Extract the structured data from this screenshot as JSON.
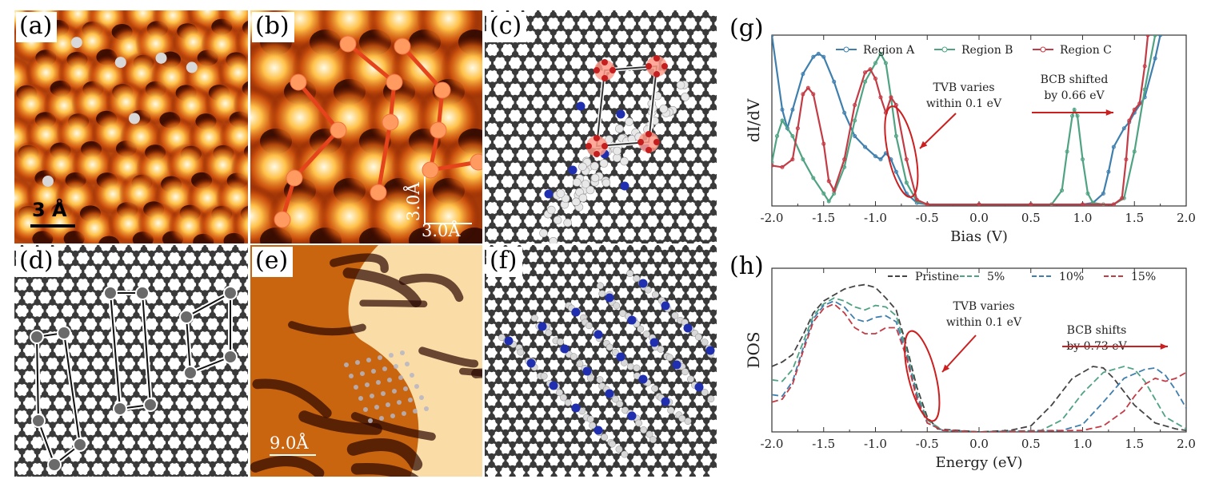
{
  "panels": {
    "a": {
      "label": "(a)",
      "scale_bar": "3 Å"
    },
    "b": {
      "label": "(b)",
      "scale_y": "3.0Å",
      "scale_x": "3.0Å"
    },
    "c": {
      "label": "(c)"
    },
    "d": {
      "label": "(d)"
    },
    "e": {
      "label": "(e)",
      "scale_bar": "9.0Å"
    },
    "f": {
      "label": "(f)"
    },
    "g": {
      "label": "(g)"
    },
    "h": {
      "label": "(h)"
    }
  },
  "colors": {
    "region_a": "#3f7fae",
    "region_b": "#4fa383",
    "region_c": "#c33b45",
    "pristine": "#444444",
    "p5": "#4fa383",
    "p10": "#3f7fae",
    "p15": "#c33b45",
    "annotation": "#cc1f1f",
    "atom": "#3a3a3a",
    "nitrogen": "#1f2fb0",
    "oxygen": "#c41e1e",
    "hydrogen": "#c9c9c9"
  },
  "chart_data": [
    {
      "type": "line",
      "panel": "g",
      "xlabel": "Bias (V)",
      "ylabel": "dI/dV",
      "xlim": [
        -2.0,
        2.0
      ],
      "ylim": [
        0,
        1.1
      ],
      "xticks": [
        "-2.0",
        "-1.5",
        "-1.0",
        "-0.5",
        "0.0",
        "0.5",
        "1.0",
        "1.5",
        "2.0"
      ],
      "legend_position": "top",
      "annotations": [
        {
          "line1": "TVB varies",
          "line2": "within 0.1 eV"
        },
        {
          "line1": "BCB shifted",
          "line2": "by 0.66 eV"
        }
      ],
      "series": [
        {
          "name": "Region A",
          "x": [
            -2.0,
            -1.9,
            -1.85,
            -1.8,
            -1.7,
            -1.6,
            -1.55,
            -1.5,
            -1.4,
            -1.3,
            -1.2,
            -1.1,
            -1.0,
            -0.95,
            -0.9,
            -0.85,
            -0.8,
            -0.7,
            -0.6,
            -0.5,
            0.0,
            0.5,
            1.0,
            1.1,
            1.2,
            1.25,
            1.3,
            1.4,
            1.45,
            1.5,
            1.6,
            1.7,
            1.75
          ],
          "y": [
            1.1,
            0.62,
            0.5,
            0.62,
            0.85,
            0.96,
            0.98,
            0.96,
            0.8,
            0.6,
            0.45,
            0.38,
            0.32,
            0.3,
            0.34,
            0.3,
            0.22,
            0.08,
            0.02,
            0.01,
            0.01,
            0.01,
            0.01,
            0.02,
            0.08,
            0.22,
            0.38,
            0.5,
            0.54,
            0.6,
            0.7,
            0.95,
            1.1
          ]
        },
        {
          "name": "Region B",
          "x": [
            -2.0,
            -1.95,
            -1.9,
            -1.8,
            -1.7,
            -1.6,
            -1.5,
            -1.45,
            -1.4,
            -1.3,
            -1.2,
            -1.1,
            -1.0,
            -0.95,
            -0.9,
            -0.85,
            -0.8,
            -0.7,
            -0.6,
            -0.5,
            0.0,
            0.5,
            0.7,
            0.8,
            0.85,
            0.9,
            0.92,
            0.95,
            1.0,
            1.05,
            1.1,
            1.2,
            1.3,
            1.4,
            1.5,
            1.6,
            1.7
          ],
          "y": [
            0.28,
            0.45,
            0.55,
            0.45,
            0.3,
            0.18,
            0.08,
            0.03,
            0.08,
            0.25,
            0.55,
            0.8,
            0.92,
            0.98,
            0.92,
            0.7,
            0.45,
            0.15,
            0.03,
            0.01,
            0.01,
            0.01,
            0.01,
            0.1,
            0.35,
            0.58,
            0.62,
            0.58,
            0.3,
            0.08,
            0.02,
            0.01,
            0.01,
            0.05,
            0.35,
            0.75,
            1.1
          ]
        },
        {
          "name": "Region C",
          "x": [
            -2.0,
            -1.9,
            -1.8,
            -1.75,
            -1.7,
            -1.65,
            -1.6,
            -1.5,
            -1.45,
            -1.4,
            -1.3,
            -1.2,
            -1.1,
            -1.05,
            -1.0,
            -0.95,
            -0.9,
            -0.85,
            -0.8,
            -0.7,
            -0.6,
            -0.5,
            0.0,
            0.5,
            1.0,
            1.3,
            1.38,
            1.42,
            1.45,
            1.5,
            1.55,
            1.6,
            1.63
          ],
          "y": [
            0.26,
            0.25,
            0.3,
            0.5,
            0.72,
            0.76,
            0.72,
            0.4,
            0.16,
            0.1,
            0.3,
            0.65,
            0.86,
            0.88,
            0.82,
            0.7,
            0.6,
            0.7,
            0.65,
            0.3,
            0.04,
            0.01,
            0.01,
            0.01,
            0.01,
            0.01,
            0.05,
            0.3,
            0.55,
            0.62,
            0.66,
            0.9,
            1.1
          ]
        }
      ]
    },
    {
      "type": "line",
      "panel": "h",
      "xlabel": "Energy (eV)",
      "ylabel": "DOS",
      "xlim": [
        -2.0,
        2.0
      ],
      "ylim": [
        0,
        1.1
      ],
      "xticks": [
        "-2.0",
        "-1.5",
        "-1.0",
        "-0.5",
        "0.0",
        "0.5",
        "1.0",
        "1.5",
        "2.0"
      ],
      "legend_position": "top",
      "annotations": [
        {
          "line1": "TVB varies",
          "line2": "within 0.1 eV"
        },
        {
          "line1": "BCB shifts",
          "line2": "by 0.73 eV"
        }
      ],
      "series": [
        {
          "name": "Pristine",
          "x": [
            -2.0,
            -1.9,
            -1.8,
            -1.7,
            -1.6,
            -1.5,
            -1.4,
            -1.3,
            -1.2,
            -1.1,
            -1.0,
            -0.9,
            -0.8,
            -0.7,
            -0.6,
            -0.5,
            -0.4,
            0.0,
            0.3,
            0.5,
            0.7,
            0.9,
            1.1,
            1.2,
            1.3,
            1.5,
            1.7,
            1.9,
            2.0
          ],
          "y": [
            0.44,
            0.47,
            0.52,
            0.65,
            0.8,
            0.88,
            0.92,
            0.96,
            0.98,
            0.99,
            0.97,
            0.9,
            0.82,
            0.58,
            0.3,
            0.1,
            0.02,
            0.0,
            0.01,
            0.04,
            0.18,
            0.36,
            0.44,
            0.43,
            0.36,
            0.18,
            0.06,
            0.02,
            0.01
          ]
        },
        {
          "name": "5%",
          "x": [
            -2.0,
            -1.9,
            -1.8,
            -1.7,
            -1.6,
            -1.5,
            -1.4,
            -1.3,
            -1.2,
            -1.1,
            -1.0,
            -0.9,
            -0.8,
            -0.7,
            -0.6,
            -0.5,
            -0.35,
            0.0,
            0.6,
            0.8,
            1.0,
            1.2,
            1.4,
            1.5,
            1.6,
            1.8,
            2.0
          ],
          "y": [
            0.35,
            0.34,
            0.42,
            0.6,
            0.78,
            0.86,
            0.9,
            0.88,
            0.84,
            0.82,
            0.85,
            0.84,
            0.78,
            0.55,
            0.26,
            0.08,
            0.01,
            0.0,
            0.01,
            0.08,
            0.26,
            0.4,
            0.44,
            0.42,
            0.34,
            0.1,
            0.02
          ]
        },
        {
          "name": "10%",
          "x": [
            -2.0,
            -1.9,
            -1.8,
            -1.7,
            -1.6,
            -1.5,
            -1.4,
            -1.3,
            -1.2,
            -1.1,
            -1.0,
            -0.9,
            -0.8,
            -0.7,
            -0.6,
            -0.5,
            -0.35,
            0.0,
            0.8,
            1.0,
            1.2,
            1.4,
            1.6,
            1.7,
            1.8,
            1.9,
            2.0
          ],
          "y": [
            0.25,
            0.24,
            0.34,
            0.56,
            0.76,
            0.85,
            0.88,
            0.84,
            0.76,
            0.74,
            0.77,
            0.78,
            0.74,
            0.52,
            0.24,
            0.06,
            0.01,
            0.0,
            0.01,
            0.05,
            0.2,
            0.36,
            0.42,
            0.43,
            0.38,
            0.28,
            0.16
          ]
        },
        {
          "name": "15%",
          "x": [
            -2.0,
            -1.9,
            -1.8,
            -1.7,
            -1.6,
            -1.5,
            -1.4,
            -1.3,
            -1.2,
            -1.1,
            -1.0,
            -0.9,
            -0.8,
            -0.7,
            -0.6,
            -0.5,
            -0.35,
            0.0,
            1.0,
            1.2,
            1.4,
            1.5,
            1.6,
            1.7,
            1.8,
            1.9,
            2.0
          ],
          "y": [
            0.2,
            0.22,
            0.32,
            0.54,
            0.74,
            0.83,
            0.86,
            0.8,
            0.7,
            0.66,
            0.66,
            0.7,
            0.7,
            0.5,
            0.22,
            0.06,
            0.01,
            0.0,
            0.01,
            0.04,
            0.14,
            0.24,
            0.32,
            0.36,
            0.34,
            0.36,
            0.4
          ]
        }
      ]
    }
  ]
}
